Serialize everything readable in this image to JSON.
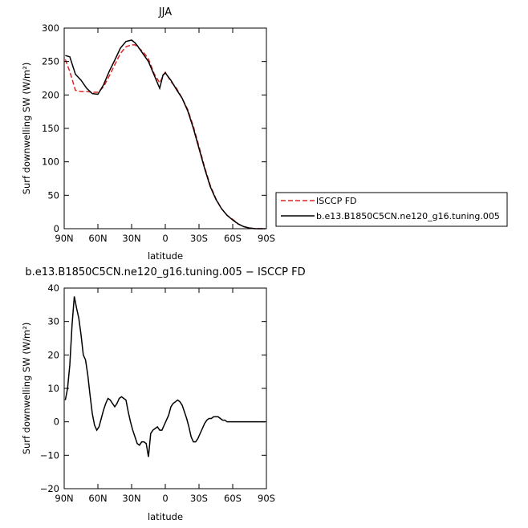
{
  "chart_data": [
    {
      "type": "line",
      "title": "JJA",
      "xlabel": "latitude",
      "ylabel": "Surf downwelling SW (W/m²)",
      "xlim": [
        90,
        -90
      ],
      "ylim": [
        0,
        300
      ],
      "x_ticks": [
        90,
        60,
        30,
        0,
        -30,
        -60,
        -90
      ],
      "x_tick_labels": [
        "90N",
        "60N",
        "30N",
        "0",
        "30S",
        "60S",
        "90S"
      ],
      "y_ticks": [
        0,
        50,
        100,
        150,
        200,
        250,
        300
      ],
      "y_tick_labels": [
        "0",
        "50",
        "100",
        "150",
        "200",
        "250",
        "300"
      ],
      "legend": "right",
      "series": [
        {
          "name": "ISCCP FD",
          "color": "#e02020",
          "dash": "dashed",
          "x": [
            89,
            85,
            80,
            75,
            70,
            65,
            60,
            55,
            50,
            45,
            40,
            35,
            30,
            27,
            25,
            20,
            15,
            10,
            5,
            2,
            0,
            -5,
            -10,
            -15,
            -20,
            -25,
            -30,
            -35,
            -40,
            -45,
            -50,
            -55,
            -60,
            -65,
            -70,
            -75,
            -80,
            -85,
            -89
          ],
          "y": [
            253,
            235,
            207,
            205,
            205,
            204,
            204,
            212,
            228,
            245,
            262,
            272,
            275,
            275,
            272,
            265,
            254,
            232,
            218,
            228,
            234,
            220,
            210,
            195,
            178,
            153,
            123,
            92,
            65,
            45,
            30,
            20,
            14,
            7,
            3,
            1,
            0,
            0,
            0
          ]
        },
        {
          "name": "b.e13.B1850C5CN.ne120_g16.tuning.005",
          "color": "#000000",
          "dash": "solid",
          "x": [
            89,
            85,
            80,
            75,
            70,
            65,
            60,
            55,
            50,
            45,
            40,
            35,
            30,
            27,
            25,
            20,
            15,
            10,
            5,
            2,
            0,
            -5,
            -10,
            -15,
            -20,
            -25,
            -30,
            -35,
            -40,
            -45,
            -50,
            -55,
            -60,
            -65,
            -70,
            -75,
            -80,
            -85,
            -89
          ],
          "y": [
            259,
            257,
            231,
            222,
            210,
            202,
            201,
            215,
            235,
            252,
            270,
            280,
            282,
            278,
            274,
            262,
            250,
            230,
            210,
            230,
            233,
            222,
            208,
            195,
            176,
            150,
            120,
            90,
            63,
            44,
            30,
            20,
            13,
            7,
            3,
            1,
            0,
            0,
            0
          ]
        }
      ]
    },
    {
      "type": "line",
      "title": "b.e13.B1850C5CN.ne120_g16.tuning.005 − ISCCP FD",
      "xlabel": "latitude",
      "ylabel": "Surf downwelling SW (W/m²)",
      "xlim": [
        90,
        -90
      ],
      "ylim": [
        -20,
        40
      ],
      "x_ticks": [
        90,
        60,
        30,
        0,
        -30,
        -60,
        -90
      ],
      "x_tick_labels": [
        "90N",
        "60N",
        "30N",
        "0",
        "30S",
        "60S",
        "90S"
      ],
      "y_ticks": [
        -20,
        -10,
        0,
        10,
        20,
        30,
        40
      ],
      "y_tick_labels": [
        "−20",
        "−10",
        "0",
        "10",
        "20",
        "30",
        "40"
      ],
      "series": [
        {
          "color": "#000000",
          "dash": "solid",
          "x": [
            89,
            87,
            85,
            83,
            81,
            79,
            77,
            75,
            73,
            71,
            69,
            67,
            65,
            63,
            61,
            59,
            57,
            55,
            53,
            51,
            49,
            47,
            45,
            43,
            41,
            39,
            37,
            35,
            33,
            31,
            29,
            27,
            25,
            23,
            21,
            19,
            17,
            15,
            13,
            11,
            9,
            7,
            5,
            3,
            1,
            -1,
            -3,
            -5,
            -7,
            -9,
            -11,
            -13,
            -15,
            -17,
            -19,
            -21,
            -23,
            -25,
            -27,
            -29,
            -31,
            -33,
            -35,
            -37,
            -39,
            -41,
            -43,
            -45,
            -47,
            -49,
            -51,
            -53,
            -55,
            -57,
            -59,
            -61,
            -63,
            -65,
            -67,
            -69,
            -71,
            -73,
            -75,
            -77,
            -79,
            -81,
            -83,
            -85,
            -87,
            -89
          ],
          "y": [
            6.5,
            10,
            17,
            29,
            37.5,
            34,
            31,
            26,
            20,
            18.5,
            14,
            8,
            2.5,
            -1,
            -2.5,
            -1.5,
            1,
            3.5,
            5.5,
            7,
            6.5,
            5.5,
            4.5,
            5.5,
            7,
            7.5,
            7,
            6.5,
            3,
            0,
            -2.5,
            -4.5,
            -6.5,
            -7,
            -6,
            -6,
            -6.5,
            -10.5,
            -3.5,
            -2.5,
            -2,
            -1.5,
            -2.5,
            -2.5,
            -1,
            0.5,
            2,
            4.5,
            5.5,
            6,
            6.5,
            6,
            5,
            3,
            1,
            -1.5,
            -4.5,
            -6,
            -6,
            -5,
            -3.5,
            -2,
            -0.5,
            0.5,
            1,
            1,
            1.5,
            1.5,
            1.5,
            1,
            0.5,
            0.5,
            0,
            0,
            0,
            0,
            0,
            0,
            0,
            0,
            0,
            0,
            0,
            0,
            0,
            0,
            0,
            0,
            0,
            0
          ]
        }
      ]
    }
  ]
}
